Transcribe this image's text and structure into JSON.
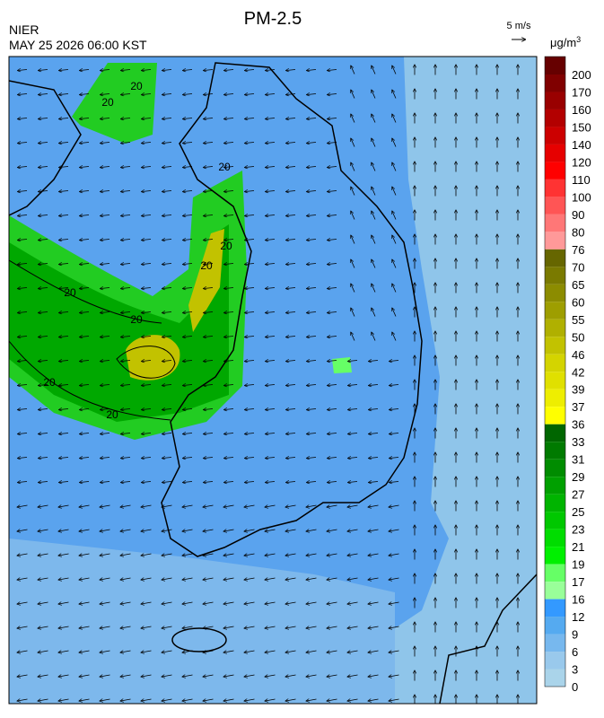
{
  "header": {
    "title": "PM-2.5",
    "agency": "NIER",
    "datetime": "MAY 25 2026 06:00 KST"
  },
  "wind_scale": {
    "label": "5 m/s"
  },
  "colorbar": {
    "unit": "μg/m",
    "unit_superscript": "3",
    "labels": [
      "200",
      "170",
      "160",
      "150",
      "140",
      "120",
      "110",
      "100",
      "90",
      "80",
      "76",
      "70",
      "65",
      "60",
      "55",
      "50",
      "46",
      "42",
      "39",
      "37",
      "36",
      "33",
      "31",
      "29",
      "27",
      "25",
      "23",
      "21",
      "19",
      "17",
      "16",
      "12",
      "9",
      "6",
      "3",
      "0"
    ],
    "colors": [
      "#660000",
      "#800000",
      "#990000",
      "#b30000",
      "#cc0000",
      "#e60000",
      "#ff0000",
      "#ff3333",
      "#ff5555",
      "#ff7777",
      "#ff9999",
      "#666600",
      "#7a7a00",
      "#8c8c00",
      "#9e9e00",
      "#b0b000",
      "#c2c200",
      "#d4d400",
      "#e0e000",
      "#eeee00",
      "#ffff00",
      "#006600",
      "#007a00",
      "#008c00",
      "#00a000",
      "#00b400",
      "#00c800",
      "#00dd00",
      "#00f000",
      "#66ff66",
      "#99ff99",
      "#3399ff",
      "#55aaf0",
      "#77b8ee",
      "#99c9ec",
      "#aad4ea"
    ]
  },
  "contour_labels": [
    "20",
    "20",
    "20",
    "20",
    "20",
    "20",
    "20",
    "20",
    "20"
  ]
}
